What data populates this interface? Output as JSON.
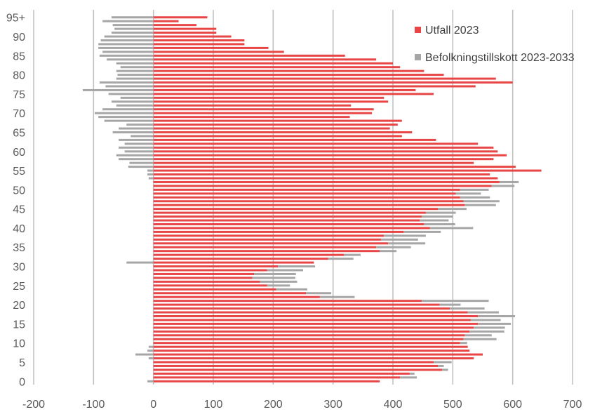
{
  "chart_data": {
    "type": "bar",
    "orientation": "horizontal",
    "xlim": [
      -200,
      700
    ],
    "x_ticks": [
      "-200",
      "-100",
      "0",
      "100",
      "200",
      "300",
      "400",
      "500",
      "600",
      "700"
    ],
    "y_ticks": [
      "0",
      "5",
      "10",
      "15",
      "20",
      "25",
      "30",
      "35",
      "40",
      "45",
      "50",
      "55",
      "60",
      "65",
      "70",
      "75",
      "80",
      "85",
      "90",
      "95+"
    ],
    "grid": "vertical",
    "legend_position": "top-right",
    "colors": {
      "utfall": "#e84646",
      "befolkning": "#a6a6a6",
      "grid": "#bfbfbf"
    },
    "categories": [
      "0",
      "1",
      "2",
      "3",
      "4",
      "5",
      "6",
      "7",
      "8",
      "9",
      "10",
      "11",
      "12",
      "13",
      "14",
      "15",
      "16",
      "17",
      "18",
      "19",
      "20",
      "21",
      "22",
      "23",
      "24",
      "25",
      "26",
      "27",
      "28",
      "29",
      "30",
      "31",
      "32",
      "33",
      "34",
      "35",
      "36",
      "37",
      "38",
      "39",
      "40",
      "41",
      "42",
      "43",
      "44",
      "45",
      "46",
      "47",
      "48",
      "49",
      "50",
      "51",
      "52",
      "53",
      "54",
      "55",
      "56",
      "57",
      "58",
      "59",
      "60",
      "61",
      "62",
      "63",
      "64",
      "65",
      "66",
      "67",
      "68",
      "69",
      "70",
      "71",
      "72",
      "73",
      "74",
      "75",
      "76",
      "77",
      "78",
      "79",
      "80",
      "81",
      "82",
      "83",
      "84",
      "85",
      "86",
      "87",
      "88",
      "89",
      "90",
      "91",
      "92",
      "93",
      "94",
      "95+"
    ],
    "series": [
      {
        "name": "Utfall 2023",
        "values": [
          378,
          412,
          428,
          482,
          475,
          468,
          535,
          550,
          528,
          525,
          512,
          518,
          520,
          528,
          535,
          542,
          530,
          542,
          525,
          495,
          478,
          448,
          278,
          255,
          205,
          190,
          178,
          165,
          168,
          190,
          208,
          268,
          292,
          318,
          378,
          372,
          392,
          380,
          385,
          418,
          462,
          452,
          445,
          448,
          455,
          475,
          520,
          518,
          512,
          505,
          512,
          565,
          578,
          575,
          562,
          648,
          605,
          535,
          568,
          590,
          575,
          568,
          542,
          472,
          415,
          432,
          395,
          408,
          415,
          328,
          365,
          368,
          330,
          392,
          385,
          468,
          438,
          538,
          600,
          572,
          485,
          452,
          412,
          400,
          372,
          320,
          218,
          192,
          152,
          152,
          130,
          105,
          105,
          72,
          42,
          90
        ]
      },
      {
        "name": "Befolkningstillskott 2023-2033",
        "values": [
          -10,
          28,
          8,
          10,
          10,
          30,
          -8,
          -30,
          -10,
          -8,
          12,
          55,
          45,
          58,
          52,
          55,
          50,
          62,
          52,
          58,
          35,
          112,
          58,
          42,
          52,
          38,
          62,
          72,
          70,
          60,
          62,
          -45,
          42,
          28,
          28,
          58,
          62,
          62,
          70,
          62,
          72,
          52,
          48,
          52,
          50,
          48,
          52,
          60,
          50,
          42,
          48,
          38,
          32,
          -8,
          -10,
          -10,
          -42,
          -40,
          -58,
          -62,
          -48,
          -58,
          -48,
          -58,
          -38,
          -68,
          -58,
          -45,
          -82,
          -92,
          -98,
          -85,
          -62,
          -70,
          -55,
          -75,
          -118,
          -80,
          -90,
          -62,
          -60,
          -62,
          -55,
          -62,
          -78,
          -90,
          -85,
          -92,
          -92,
          -88,
          -82,
          -70,
          -65,
          -68,
          -85,
          -70
        ]
      }
    ]
  }
}
